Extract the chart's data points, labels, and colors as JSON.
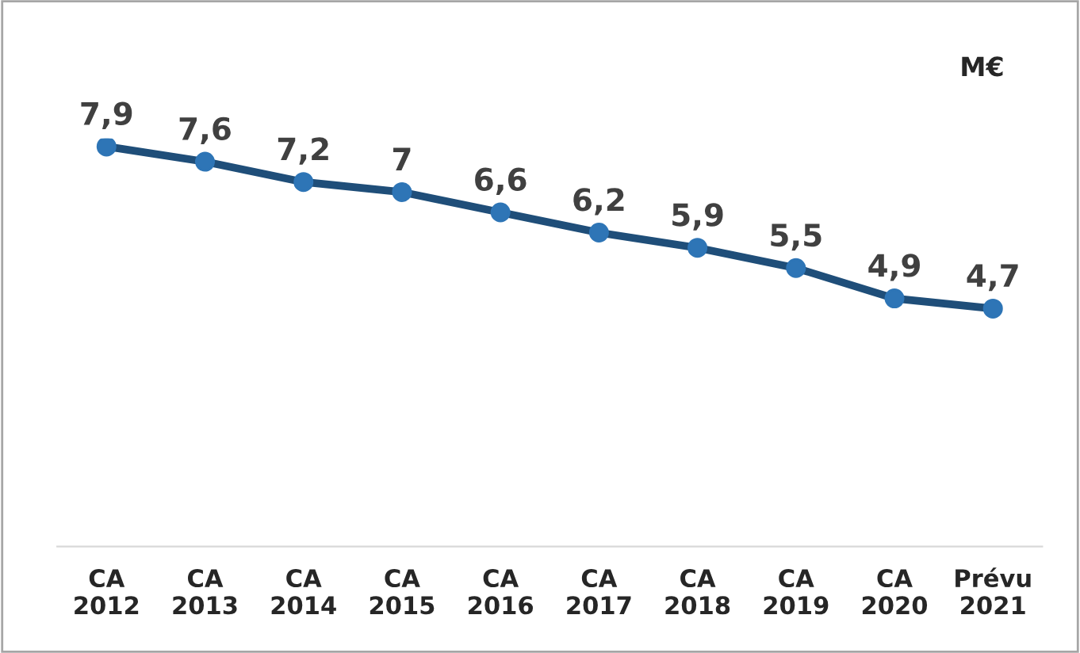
{
  "chart_data": {
    "type": "line",
    "categories": [
      "CA\n2012",
      "CA\n2013",
      "CA\n2014",
      "CA\n2015",
      "CA\n2016",
      "CA\n2017",
      "CA\n2018",
      "CA\n2019",
      "CA\n2020",
      "Prévu\n2021"
    ],
    "series": [
      {
        "color": "#1f4e79",
        "values": [
          7.9,
          7.6,
          7.2,
          7,
          6.6,
          6.2,
          5.9,
          5.5,
          4.9,
          4.7
        ],
        "value_labels": [
          "7,9",
          "7,6",
          "7,2",
          "7",
          "6,6",
          "6,2",
          "5,9",
          "5,5",
          "4,9",
          "4,7"
        ]
      }
    ],
    "tick_labels": "x",
    "marker": "circle",
    "line_style": "solid",
    "annotations": [
      "M€"
    ]
  }
}
